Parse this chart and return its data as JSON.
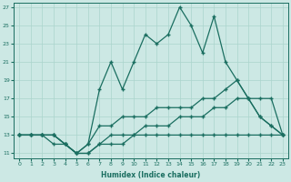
{
  "xlabel": "Humidex (Indice chaleur)",
  "bg_color": "#cce8e4",
  "grid_color": "#aad4cc",
  "line_color": "#1a6e60",
  "xlim": [
    -0.5,
    23.5
  ],
  "ylim": [
    10.5,
    27.5
  ],
  "xticks": [
    0,
    1,
    2,
    3,
    4,
    5,
    6,
    7,
    8,
    9,
    10,
    11,
    12,
    13,
    14,
    15,
    16,
    17,
    18,
    19,
    20,
    21,
    22,
    23
  ],
  "yticks": [
    11,
    13,
    15,
    17,
    19,
    21,
    23,
    25,
    27
  ],
  "line1_x": [
    0,
    1,
    2,
    3,
    4,
    5,
    6,
    7,
    8,
    9,
    10,
    11,
    12,
    13,
    14,
    15,
    16,
    17,
    18,
    19,
    20,
    21,
    22,
    23
  ],
  "line1_y": [
    13,
    13,
    13,
    13,
    12,
    11,
    12,
    18,
    21,
    18,
    21,
    24,
    23,
    24,
    27,
    25,
    22,
    26,
    21,
    19,
    17,
    15,
    14,
    13
  ],
  "line2_x": [
    0,
    1,
    2,
    3,
    4,
    5,
    6,
    7,
    8,
    9,
    10,
    11,
    12,
    13,
    14,
    15,
    16,
    17,
    18,
    19,
    20,
    21,
    22,
    23
  ],
  "line2_y": [
    13,
    13,
    13,
    13,
    12,
    11,
    12,
    14,
    14,
    15,
    15,
    15,
    16,
    16,
    16,
    16,
    17,
    17,
    18,
    19,
    17,
    15,
    14,
    13
  ],
  "line3_x": [
    0,
    1,
    2,
    3,
    4,
    5,
    6,
    7,
    8,
    9,
    10,
    11,
    12,
    13,
    14,
    15,
    16,
    17,
    18,
    19,
    20,
    21,
    22,
    23
  ],
  "line3_y": [
    13,
    13,
    13,
    12,
    12,
    11,
    11,
    12,
    13,
    13,
    13,
    14,
    14,
    14,
    15,
    15,
    15,
    16,
    16,
    17,
    17,
    17,
    17,
    13
  ],
  "line4_x": [
    0,
    1,
    2,
    3,
    4,
    5,
    6,
    7,
    8,
    9,
    10,
    11,
    12,
    13,
    14,
    15,
    16,
    17,
    18,
    19,
    20,
    21,
    22,
    23
  ],
  "line4_y": [
    13,
    13,
    13,
    13,
    12,
    11,
    11,
    12,
    12,
    12,
    13,
    13,
    13,
    13,
    13,
    13,
    13,
    13,
    13,
    13,
    13,
    13,
    13,
    13
  ]
}
